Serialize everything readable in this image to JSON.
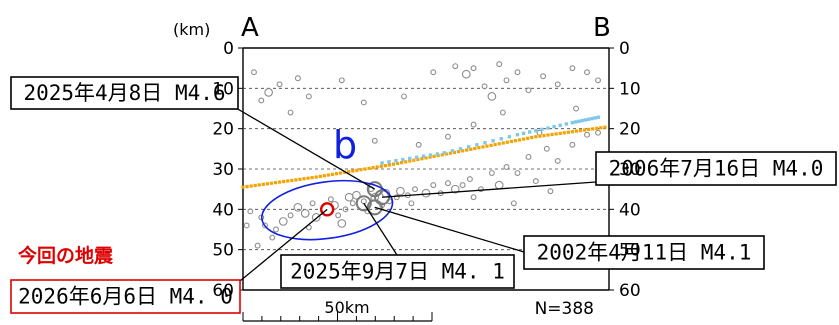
{
  "chart_data": {
    "type": "scatter",
    "section": {
      "start": "A",
      "end": "B"
    },
    "y_unit": "(km)",
    "ylim": [
      0,
      60
    ],
    "y_inverted": true,
    "y_ticks": [
      "0",
      "10",
      "20",
      "30",
      "40",
      "50",
      "60"
    ],
    "xlim": [
      0,
      1
    ],
    "grid": "dashed-horizontal",
    "count_text": "N=388",
    "scale_bar": {
      "label": "50km"
    },
    "colors": {
      "hypocenter": "#8c8c8c",
      "current_event": "#e00000",
      "plate_orange": "#f5a300",
      "plate_blue": "#7ec8ee",
      "region_b": "#1020e0",
      "callout_red": "#e00000"
    },
    "region_label": "b",
    "region_b": {
      "cx": 0.23,
      "cy": 40.2,
      "rx": 0.18,
      "ry": 7.0,
      "rotation_deg": -8
    },
    "plate_orange": [
      [
        0.0,
        34.5
      ],
      [
        0.2,
        32.0
      ],
      [
        0.4,
        29.0
      ],
      [
        0.6,
        25.5
      ],
      [
        0.8,
        22.0
      ],
      [
        1.0,
        19.5
      ]
    ],
    "plate_blue": [
      [
        0.38,
        28.5
      ],
      [
        0.55,
        26.0
      ],
      [
        0.75,
        21.5
      ],
      [
        0.9,
        18.5
      ],
      [
        0.98,
        17.0
      ]
    ],
    "hypocenters": [
      [
        0.02,
        40.5,
        1
      ],
      [
        0.05,
        42,
        1
      ],
      [
        0.06,
        44,
        1
      ],
      [
        0.09,
        45,
        1
      ],
      [
        0.11,
        43,
        2
      ],
      [
        0.13,
        41.5,
        1
      ],
      [
        0.15,
        39.5,
        2
      ],
      [
        0.17,
        41,
        2
      ],
      [
        0.19,
        38.5,
        1
      ],
      [
        0.2,
        42,
        2
      ],
      [
        0.22,
        40,
        1
      ],
      [
        0.24,
        37.5,
        1
      ],
      [
        0.25,
        39,
        2
      ],
      [
        0.26,
        41.5,
        1
      ],
      [
        0.28,
        40,
        1
      ],
      [
        0.29,
        37,
        2
      ],
      [
        0.3,
        38.5,
        1
      ],
      [
        0.31,
        36.5,
        2
      ],
      [
        0.33,
        38,
        1
      ],
      [
        0.34,
        40.5,
        1
      ],
      [
        0.35,
        35,
        1
      ],
      [
        0.36,
        37,
        2
      ],
      [
        0.38,
        39,
        1
      ],
      [
        0.39,
        36,
        2
      ],
      [
        0.4,
        38,
        1
      ],
      [
        0.42,
        37,
        1
      ],
      [
        0.43,
        35.5,
        2
      ],
      [
        0.45,
        36.5,
        1
      ],
      [
        0.47,
        35,
        1
      ],
      [
        0.5,
        36,
        2
      ],
      [
        0.52,
        34,
        1
      ],
      [
        0.54,
        36,
        1
      ],
      [
        0.56,
        33.5,
        1
      ],
      [
        0.58,
        35,
        2
      ],
      [
        0.6,
        34,
        1
      ],
      [
        0.62,
        32.5,
        1
      ],
      [
        0.65,
        35,
        1
      ],
      [
        0.68,
        31,
        1
      ],
      [
        0.7,
        34,
        2
      ],
      [
        0.72,
        29.5,
        1
      ],
      [
        0.75,
        31,
        1
      ],
      [
        0.78,
        27,
        1
      ],
      [
        0.8,
        33,
        1
      ],
      [
        0.83,
        25,
        1
      ],
      [
        0.86,
        28,
        1
      ],
      [
        0.9,
        24,
        1
      ],
      [
        0.94,
        21.5,
        1
      ],
      [
        0.97,
        21,
        1
      ],
      [
        0.03,
        6,
        1
      ],
      [
        0.05,
        13,
        1
      ],
      [
        0.07,
        11,
        2
      ],
      [
        0.1,
        9,
        1
      ],
      [
        0.15,
        7.5,
        1
      ],
      [
        0.18,
        12,
        1
      ],
      [
        0.27,
        8,
        1
      ],
      [
        0.33,
        13.5,
        1
      ],
      [
        0.44,
        12,
        1
      ],
      [
        0.52,
        6,
        1
      ],
      [
        0.58,
        4.5,
        1
      ],
      [
        0.61,
        6.5,
        2
      ],
      [
        0.63,
        5,
        1
      ],
      [
        0.66,
        9.5,
        1
      ],
      [
        0.68,
        12,
        2
      ],
      [
        0.7,
        4,
        1
      ],
      [
        0.72,
        8,
        1
      ],
      [
        0.75,
        6,
        1
      ],
      [
        0.78,
        10.5,
        1
      ],
      [
        0.82,
        7,
        1
      ],
      [
        0.86,
        9,
        1
      ],
      [
        0.9,
        5,
        1
      ],
      [
        0.94,
        6,
        1
      ],
      [
        0.97,
        8,
        1
      ],
      [
        0.48,
        24,
        1
      ],
      [
        0.56,
        22,
        1
      ],
      [
        0.63,
        19,
        1
      ],
      [
        0.71,
        16,
        1
      ],
      [
        0.81,
        21,
        1
      ],
      [
        0.91,
        15,
        1
      ],
      [
        0.36,
        23,
        1
      ],
      [
        0.13,
        16,
        1
      ],
      [
        0.04,
        49,
        1
      ],
      [
        0.08,
        47,
        1
      ],
      [
        0.18,
        44.5,
        1
      ],
      [
        0.46,
        38.5,
        1
      ],
      [
        0.63,
        37,
        1
      ],
      [
        0.74,
        38.5,
        1
      ],
      [
        0.84,
        35.5,
        1
      ],
      [
        0.01,
        44,
        1
      ],
      [
        0.27,
        43.5,
        2
      ]
    ],
    "events": [
      {
        "label": "2025年4月8日 M4.6",
        "x": 0.36,
        "y": 35.0,
        "size": 3
      },
      {
        "label": "2006年7月16日 M4.0",
        "x": 0.38,
        "y": 37.0,
        "size": 3
      },
      {
        "label": "2002年4月11日 M4.1",
        "x": 0.36,
        "y": 39.5,
        "size": 3
      },
      {
        "label": "2025年9月7日 M4. 1",
        "x": 0.33,
        "y": 38.5,
        "size": 3
      },
      {
        "label": "2026年6月6日 M4. 0",
        "x": 0.23,
        "y": 40.0,
        "size": 3,
        "current": true
      }
    ],
    "current_event_title": "今回の地震"
  }
}
